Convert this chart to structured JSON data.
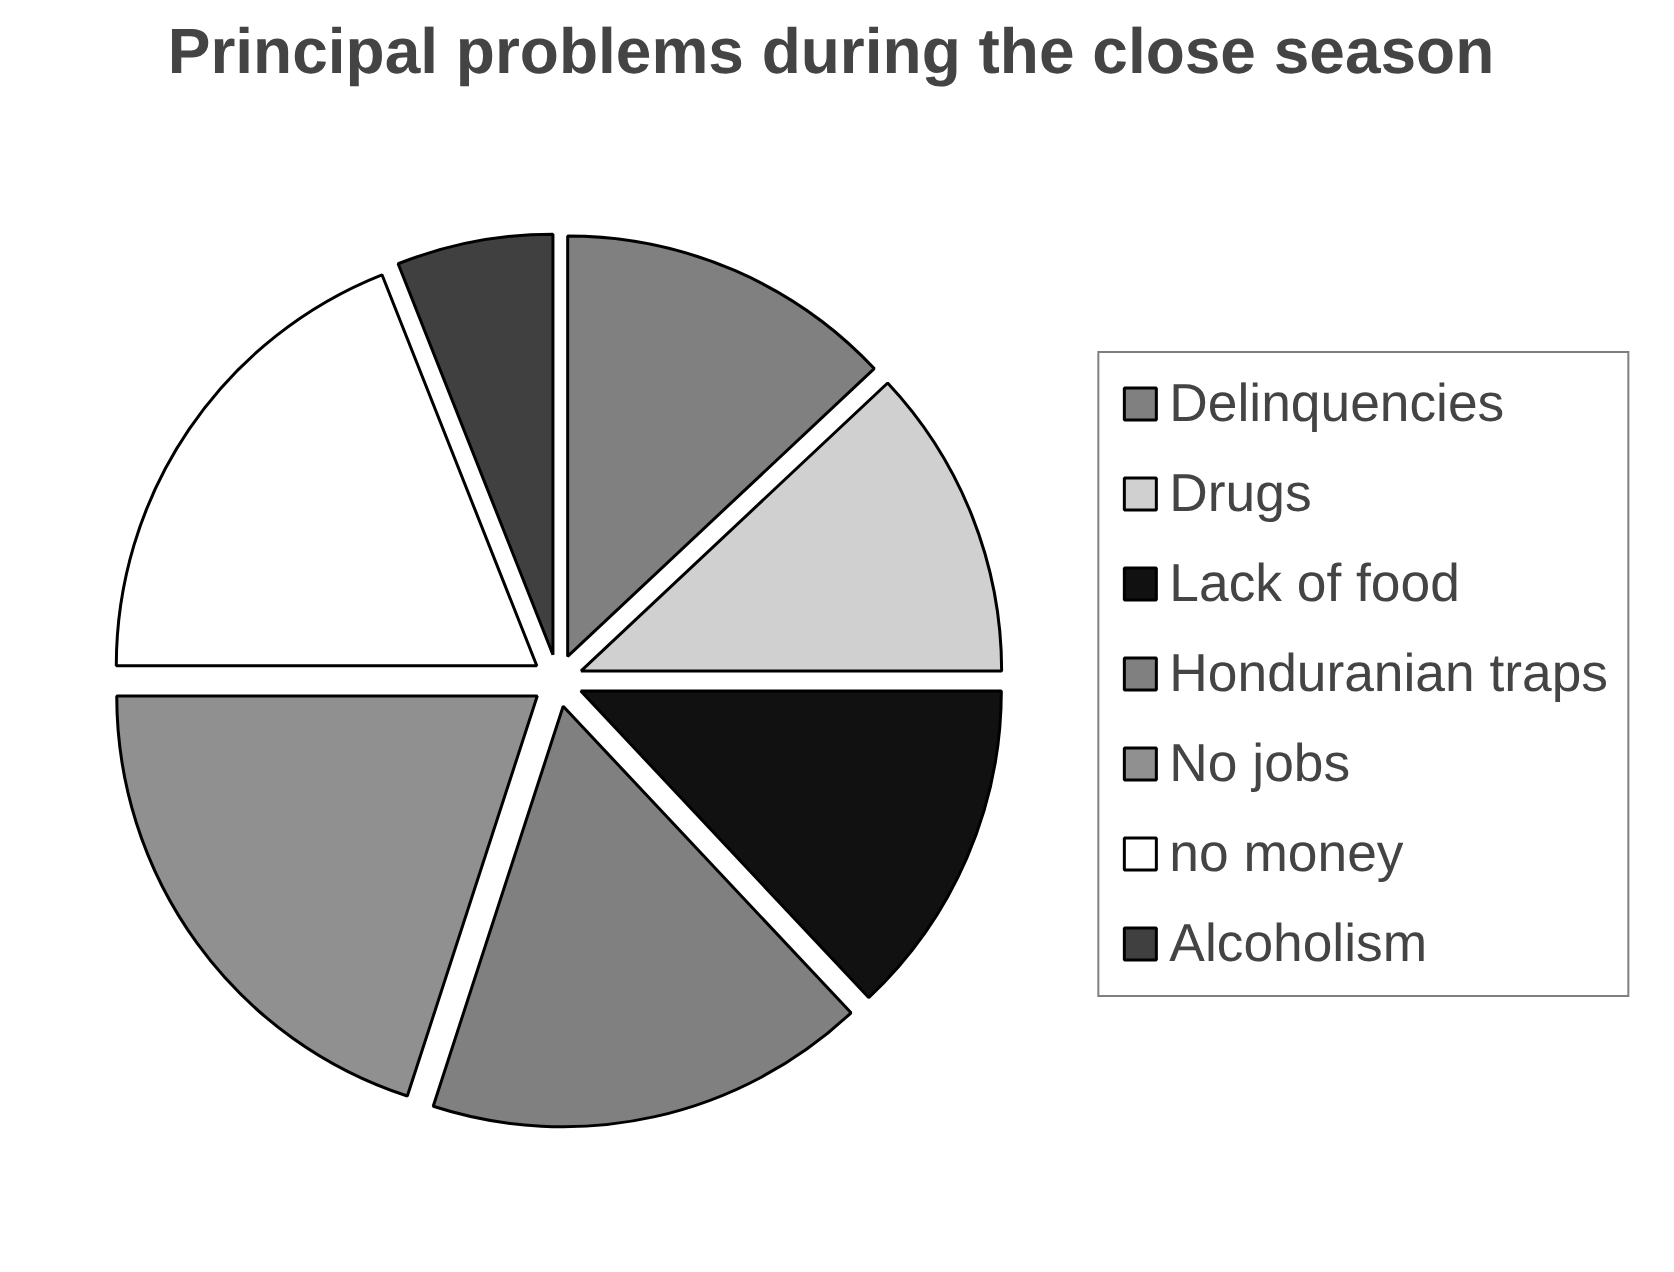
{
  "chart_data": {
    "type": "pie",
    "title": "Principal problems during the close season",
    "categories": [
      "Delinquencies",
      "Drugs",
      "Lack of food",
      "Honduranian traps",
      "No jobs",
      "no money",
      "Alcoholism"
    ],
    "values": [
      13,
      12,
      13,
      17,
      20,
      19,
      6
    ],
    "colors": [
      "#808080",
      "#d0d0d0",
      "#111111",
      "#808080",
      "#909090",
      "#ffffff",
      "#404040"
    ],
    "legend": "right"
  }
}
